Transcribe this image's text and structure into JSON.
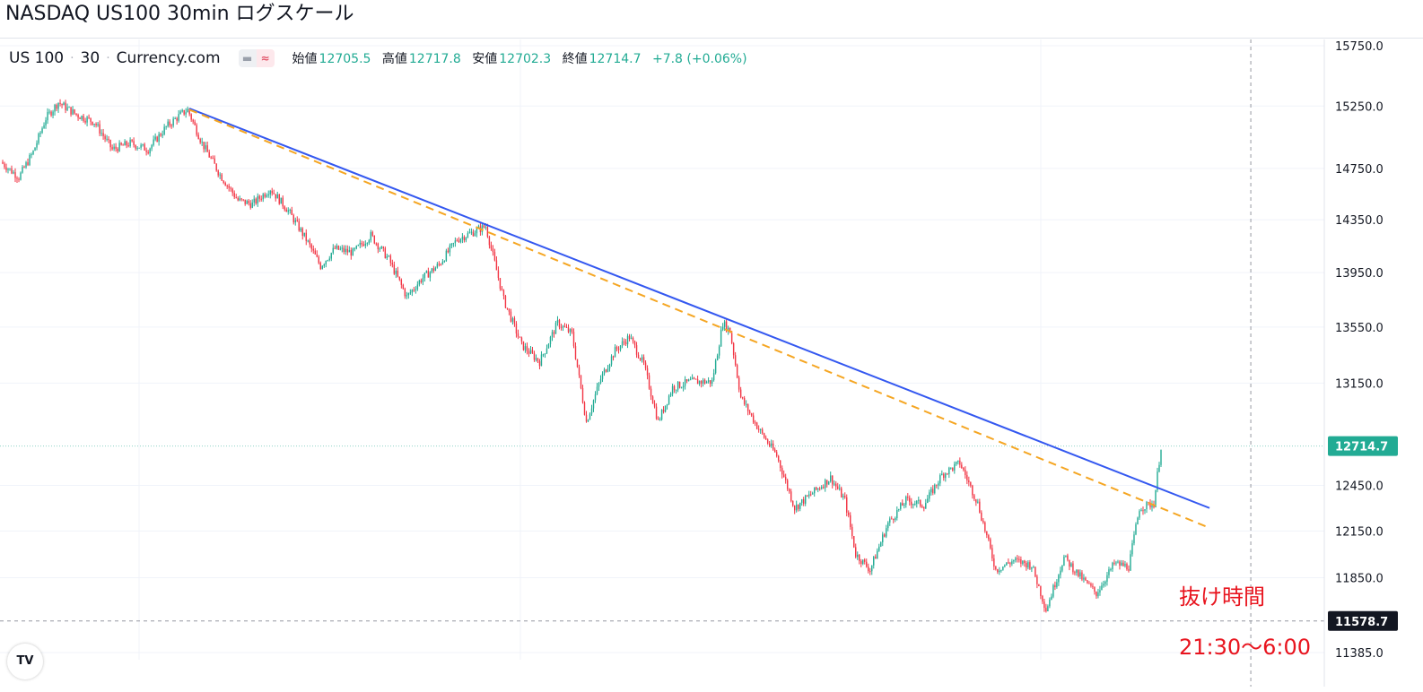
{
  "title": "NASDAQ US100 30min ログスケール",
  "legend": {
    "symbol": "US 100",
    "interval": "30",
    "source": "Currency.com",
    "open_label": "始値",
    "open": "12705.5",
    "high_label": "高値",
    "high": "12717.8",
    "low_label": "安値",
    "low": "12702.3",
    "close_label": "終値",
    "close": "12714.7",
    "change": "+7.8 (+0.06%)"
  },
  "annotation": {
    "text": "抜け時間",
    "time_range": "21:30〜6:00"
  },
  "logo_text": "TV",
  "colors": {
    "up": "#22ab94",
    "down": "#f23645",
    "trend_solid": "#3458f0",
    "trend_dashed": "#f5a623",
    "price_tag_current": "#22ab94",
    "price_tag_crosshair": "#131722",
    "annotation": "#e8141e"
  },
  "chart_data": {
    "type": "candlestick",
    "title": "NASDAQ US100 30min ログスケール",
    "y_scale": "log",
    "ylim": [
      11350,
      15800
    ],
    "y_ticks": [
      15750.0,
      15250.0,
      14750.0,
      14350.0,
      13950.0,
      13550.0,
      13150.0,
      12450.0,
      12150.0,
      11850.0,
      11385.0
    ],
    "y_tick_labels": [
      "15750.0",
      "15250.0",
      "14750.0",
      "14350.0",
      "13950.0",
      "13550.0",
      "13150.0",
      "12450.0",
      "12150.0",
      "11850.0",
      "11385.0"
    ],
    "n_bars": 480,
    "price_path": [
      [
        0,
        14800
      ],
      [
        10,
        14680
      ],
      [
        18,
        14880
      ],
      [
        25,
        15150
      ],
      [
        32,
        15280
      ],
      [
        42,
        15180
      ],
      [
        52,
        15120
      ],
      [
        62,
        14900
      ],
      [
        72,
        14950
      ],
      [
        82,
        14900
      ],
      [
        92,
        15080
      ],
      [
        100,
        15180
      ],
      [
        104,
        15220
      ],
      [
        112,
        14950
      ],
      [
        122,
        14700
      ],
      [
        132,
        14500
      ],
      [
        140,
        14470
      ],
      [
        150,
        14590
      ],
      [
        160,
        14420
      ],
      [
        170,
        14200
      ],
      [
        178,
        14000
      ],
      [
        186,
        14130
      ],
      [
        196,
        14100
      ],
      [
        206,
        14230
      ],
      [
        216,
        14050
      ],
      [
        226,
        13770
      ],
      [
        234,
        13900
      ],
      [
        244,
        14010
      ],
      [
        254,
        14200
      ],
      [
        262,
        14250
      ],
      [
        270,
        14300
      ],
      [
        280,
        13750
      ],
      [
        290,
        13420
      ],
      [
        300,
        13300
      ],
      [
        310,
        13580
      ],
      [
        318,
        13500
      ],
      [
        326,
        12880
      ],
      [
        334,
        13180
      ],
      [
        342,
        13380
      ],
      [
        350,
        13480
      ],
      [
        358,
        13280
      ],
      [
        366,
        12880
      ],
      [
        374,
        13120
      ],
      [
        384,
        13160
      ],
      [
        396,
        13160
      ],
      [
        402,
        13580
      ],
      [
        406,
        13520
      ],
      [
        412,
        13050
      ],
      [
        422,
        12830
      ],
      [
        432,
        12650
      ],
      [
        442,
        12300
      ],
      [
        452,
        12400
      ],
      [
        462,
        12500
      ],
      [
        470,
        12350
      ],
      [
        476,
        12000
      ],
      [
        484,
        11900
      ],
      [
        494,
        12200
      ],
      [
        504,
        12350
      ],
      [
        514,
        12320
      ],
      [
        524,
        12520
      ],
      [
        534,
        12600
      ],
      [
        544,
        12330
      ],
      [
        554,
        11900
      ],
      [
        564,
        11960
      ],
      [
        574,
        11930
      ],
      [
        582,
        11650
      ],
      [
        592,
        11980
      ],
      [
        600,
        11870
      ],
      [
        610,
        11750
      ],
      [
        620,
        11940
      ],
      [
        628,
        11920
      ],
      [
        634,
        12300
      ],
      [
        642,
        12330
      ],
      [
        646,
        12710
      ]
    ],
    "total_bars": 646,
    "trendlines": [
      {
        "style": "solid",
        "from_bar": 104,
        "from": 15230,
        "to_bar": 672,
        "to": 12300
      },
      {
        "style": "dashed",
        "from_bar": 104,
        "from": 15220,
        "to_bar": 672,
        "to": 12170
      }
    ],
    "price_tags": [
      {
        "label": "12714.7",
        "value": 12714.7,
        "kind": "current"
      },
      {
        "label": "11578.7",
        "value": 11578.7,
        "kind": "crosshair"
      }
    ],
    "crosshair_vertical_bar": 695
  }
}
